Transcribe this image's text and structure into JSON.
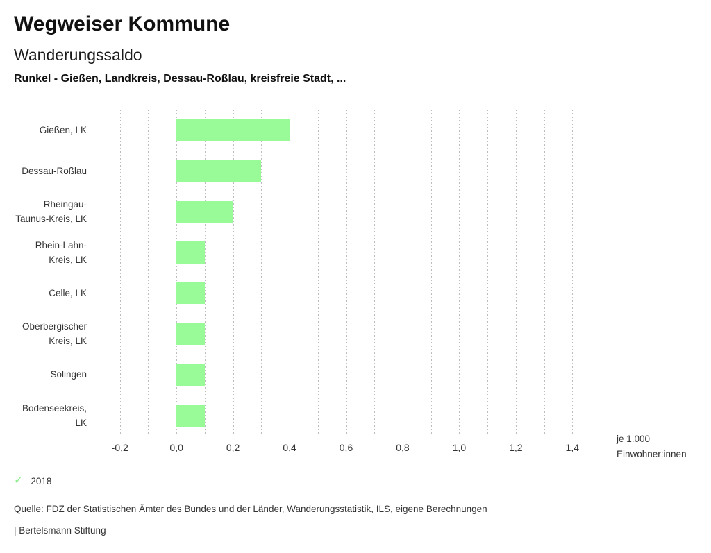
{
  "header": {
    "title": "Wegweiser Kommune",
    "subtitle": "Wanderungssaldo",
    "comparison": "Runkel - Gießen, Landkreis, Dessau-Roßlau, kreisfreie Stadt, ..."
  },
  "chart_data": {
    "type": "bar",
    "orientation": "horizontal",
    "title": "Wanderungssaldo",
    "categories": [
      "Gießen, LK",
      "Dessau-Roßlau",
      "Rheingau-Taunus-Kreis, LK",
      "Rhein-Lahn-Kreis, LK",
      "Celle, LK",
      "Oberbergischer Kreis, LK",
      "Solingen",
      "Bodenseekreis, LK"
    ],
    "series": [
      {
        "name": "2018",
        "values": [
          0.4,
          0.3,
          0.2,
          0.1,
          0.1,
          0.1,
          0.1,
          0.1
        ]
      }
    ],
    "xlim": [
      -0.3,
      1.5
    ],
    "grid_step": 0.1,
    "grid": true,
    "xticks": [
      {
        "v": -0.2,
        "label": "-0,2"
      },
      {
        "v": 0.0,
        "label": "0,0"
      },
      {
        "v": 0.2,
        "label": "0,2"
      },
      {
        "v": 0.4,
        "label": "0,4"
      },
      {
        "v": 0.6,
        "label": "0,6"
      },
      {
        "v": 0.8,
        "label": "0,8"
      },
      {
        "v": 1.0,
        "label": "1,0"
      },
      {
        "v": 1.2,
        "label": "1,2"
      },
      {
        "v": 1.4,
        "label": "1,4"
      }
    ],
    "unit_label_lines": [
      "je 1.000",
      "Einwohner:innen"
    ],
    "bar_color": "#98FB98",
    "gridline_color": "#bdbdbd"
  },
  "legend": {
    "check_icon": "✓",
    "check_color": "#90EE90",
    "year": "2018"
  },
  "footer": {
    "source": "Quelle: FDZ der Statistischen Ämter des Bundes und der Länder, Wanderungsstatistik, ILS, eigene Berechnungen",
    "brand": "| Bertelsmann Stiftung"
  }
}
